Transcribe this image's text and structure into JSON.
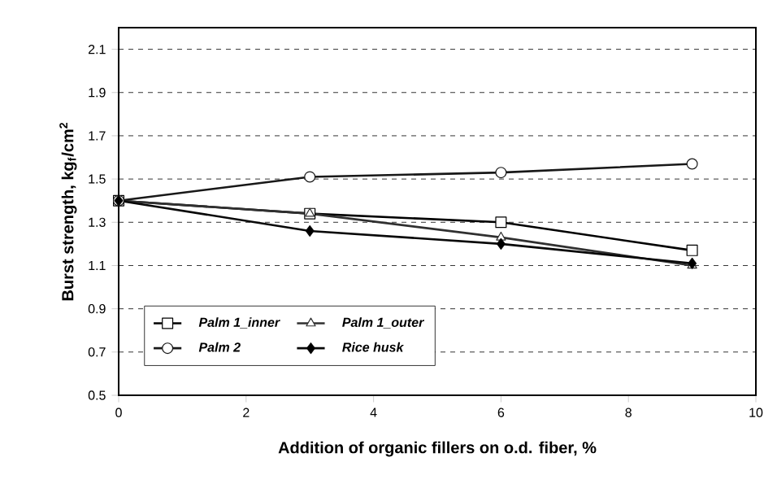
{
  "chart_data": {
    "type": "line",
    "xlabel": "Addition of organic fillers on o.d. fiber, %",
    "ylabel": "Burst strength, kg$_{f}$/cm$^{2}$",
    "x": [
      0,
      3,
      6,
      9
    ],
    "series": [
      {
        "name": "Palm 1_inner",
        "color": "#000000",
        "marker": "square",
        "values": [
          1.4,
          1.34,
          1.3,
          1.17
        ]
      },
      {
        "name": "Palm 1_outer",
        "color": "#303030",
        "marker": "triangle",
        "values": [
          1.4,
          1.34,
          1.23,
          1.1
        ]
      },
      {
        "name": "Palm 2",
        "color": "#181818",
        "marker": "circle",
        "values": [
          1.4,
          1.51,
          1.53,
          1.57
        ]
      },
      {
        "name": "Rice husk",
        "color": "#080808",
        "marker": "diamond",
        "values": [
          1.4,
          1.26,
          1.2,
          1.11
        ]
      }
    ],
    "xlim": [
      0,
      10
    ],
    "xticks": [
      0,
      2,
      4,
      6,
      8,
      10
    ],
    "ylim": [
      0.5,
      2.2
    ],
    "yticks": [
      {
        "value": 0.5,
        "label": "0.5"
      },
      {
        "value": 0.7,
        "label": "0.7"
      },
      {
        "value": 0.9,
        "label": "0.9"
      },
      {
        "value": 1.1,
        "label": "1.1"
      },
      {
        "value": 1.3,
        "label": "1.3"
      },
      {
        "value": 1.5,
        "label": "1.5"
      },
      {
        "value": 1.7,
        "label": "1.7"
      },
      {
        "value": 1.9,
        "label": "1.9"
      },
      {
        "value": 2.1,
        "label": "2.1"
      }
    ],
    "grid": "y",
    "legend": "bottom left",
    "line_style": "solid"
  }
}
